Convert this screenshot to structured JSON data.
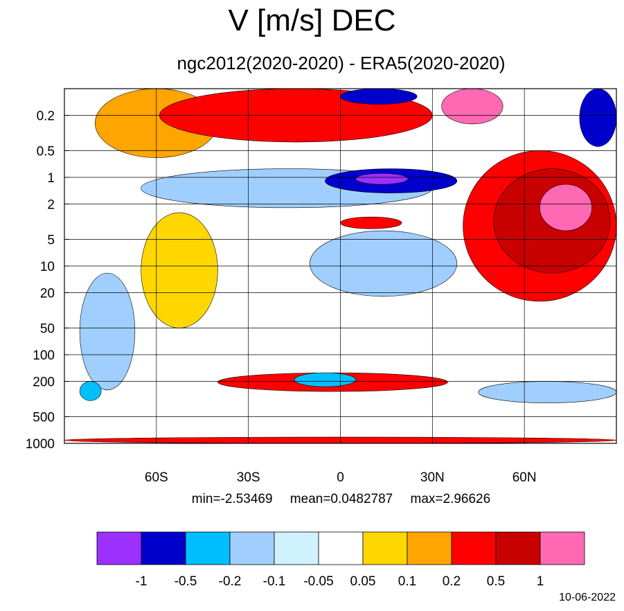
{
  "title": "V [m/s] DEC",
  "subtitle": "ngc2012(2020-2020) - ERA5(2020-2020)",
  "stats": {
    "min": "min=-2.53469",
    "mean": "mean=0.0482787",
    "max": "max=2.96626"
  },
  "date": "10-06-2022",
  "chart_data": {
    "type": "heatmap",
    "xlabel": "",
    "ylabel": "",
    "x_ticks": [
      {
        "value": -60,
        "label": "60S"
      },
      {
        "value": -30,
        "label": "30S"
      },
      {
        "value": 0,
        "label": "0"
      },
      {
        "value": 30,
        "label": "30N"
      },
      {
        "value": 60,
        "label": "60N"
      }
    ],
    "xlim": [
      -90,
      90
    ],
    "y_scale": "log",
    "y_reversed": true,
    "ylim": [
      0.1,
      1000
    ],
    "y_ticks": [
      0.2,
      0.5,
      1,
      2,
      5,
      10,
      20,
      50,
      100,
      200,
      500,
      1000
    ],
    "y_tick_labels": [
      "0.2",
      "0.5",
      "1",
      "2",
      "5",
      "10",
      "20",
      "50",
      "100",
      "200",
      "500",
      "1000"
    ],
    "levels": [
      "-1",
      "-0.5",
      "-0.2",
      "-0.1",
      "-0.05",
      "0.05",
      "0.1",
      "0.2",
      "0.5",
      "1"
    ],
    "colorbar_colors": [
      "#9b30ff",
      "#0000cd",
      "#00bfff",
      "#a0cfff",
      "#d0f2ff",
      "#ffffff",
      "#ffd700",
      "#ffa500",
      "#ff0000",
      "#c90000",
      "#ff69b4"
    ],
    "regions": [
      {
        "min_lat": -80,
        "max_lat": -40,
        "min_p": 0.1,
        "max_p": 0.6,
        "bin": 7
      },
      {
        "min_lat": -59,
        "max_lat": 30,
        "min_p": 0.1,
        "max_p": 0.4,
        "bin": 8
      },
      {
        "min_lat": 0,
        "max_lat": 25,
        "min_p": 0.1,
        "max_p": 0.15,
        "bin": 1
      },
      {
        "min_lat": 33,
        "max_lat": 53,
        "min_p": 0.1,
        "max_p": 0.25,
        "bin": 10
      },
      {
        "min_lat": 78,
        "max_lat": 90,
        "min_p": 0.1,
        "max_p": 0.45,
        "bin": 1
      },
      {
        "min_lat": -65,
        "max_lat": 30,
        "min_p": 0.8,
        "max_p": 2.2,
        "bin": 3
      },
      {
        "min_lat": -5,
        "max_lat": 38,
        "min_p": 0.8,
        "max_p": 1.5,
        "bin": 1
      },
      {
        "min_lat": 5,
        "max_lat": 22,
        "min_p": 0.9,
        "max_p": 1.2,
        "bin": 0
      },
      {
        "min_lat": 40,
        "max_lat": 90,
        "min_p": 0.5,
        "max_p": 25,
        "bin": 8
      },
      {
        "min_lat": 50,
        "max_lat": 88,
        "min_p": 0.8,
        "max_p": 12,
        "bin": 9
      },
      {
        "min_lat": 65,
        "max_lat": 82,
        "min_p": 1.2,
        "max_p": 4,
        "bin": 10
      },
      {
        "min_lat": 0,
        "max_lat": 20,
        "min_p": 2.8,
        "max_p": 3.8,
        "bin": 8
      },
      {
        "min_lat": -10,
        "max_lat": 38,
        "min_p": 4,
        "max_p": 22,
        "bin": 3
      },
      {
        "min_lat": -65,
        "max_lat": -40,
        "min_p": 2.5,
        "max_p": 50,
        "bin": 6
      },
      {
        "min_lat": -85,
        "max_lat": -67,
        "min_p": 12,
        "max_p": 250,
        "bin": 3
      },
      {
        "min_lat": -40,
        "max_lat": 35,
        "min_p": 160,
        "max_p": 260,
        "bin": 8
      },
      {
        "min_lat": -15,
        "max_lat": 5,
        "min_p": 160,
        "max_p": 230,
        "bin": 2
      },
      {
        "min_lat": -85,
        "max_lat": -78,
        "min_p": 200,
        "max_p": 330,
        "bin": 2
      },
      {
        "min_lat": 45,
        "max_lat": 90,
        "min_p": 200,
        "max_p": 350,
        "bin": 3
      },
      {
        "min_lat": -90,
        "max_lat": 90,
        "min_p": 850,
        "max_p": 1000,
        "bin": 8
      }
    ]
  }
}
